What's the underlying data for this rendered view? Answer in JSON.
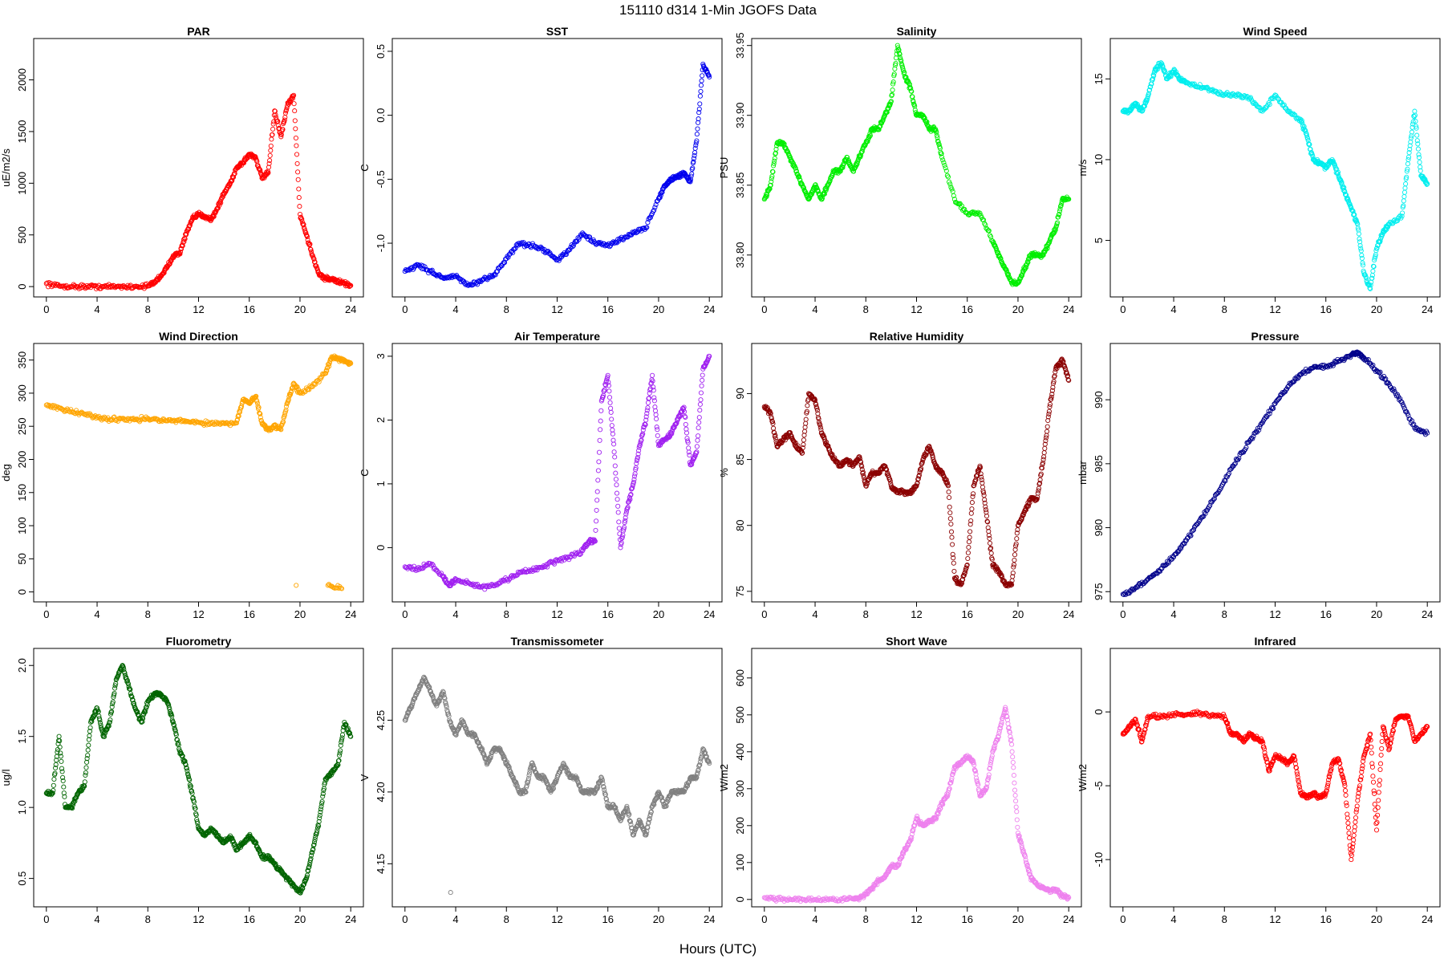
{
  "figure": {
    "title": "151110   d314   1-Min  JGOFS Data",
    "xlabel": "Hours (UTC)"
  },
  "chart_data": [
    {
      "type": "scatter",
      "title": "PAR",
      "ylabel": "uE/m2/s",
      "color": "#ff0000",
      "xlim": [
        -1,
        25
      ],
      "ylim": [
        -100,
        2400
      ],
      "xticks": [
        0,
        4,
        8,
        12,
        16,
        20,
        24
      ],
      "yticks": [
        0,
        500,
        1000,
        1500,
        2000
      ],
      "x": [
        0,
        1,
        2,
        3,
        4,
        5,
        6,
        7,
        8,
        8.5,
        9,
        9.5,
        10,
        10.5,
        11,
        11.5,
        12,
        12.5,
        13,
        13.5,
        14,
        14.5,
        15,
        15.5,
        16,
        16.5,
        17,
        17.5,
        18,
        18.5,
        19,
        19.5,
        20,
        20.5,
        21,
        21.5,
        22,
        22.5,
        23,
        23.5,
        24
      ],
      "y": [
        30,
        5,
        0,
        0,
        0,
        0,
        0,
        0,
        5,
        40,
        100,
        180,
        300,
        320,
        500,
        650,
        700,
        680,
        650,
        760,
        900,
        1000,
        1150,
        1200,
        1280,
        1250,
        1050,
        1100,
        1700,
        1450,
        1750,
        1850,
        700,
        500,
        300,
        120,
        80,
        70,
        50,
        30,
        10
      ]
    },
    {
      "type": "scatter",
      "title": "SST",
      "ylabel": "C",
      "color": "#0000ee",
      "xlim": [
        -1,
        25
      ],
      "ylim": [
        -1.42,
        0.6
      ],
      "xticks": [
        0,
        4,
        8,
        12,
        16,
        20,
        24
      ],
      "yticks": [
        -1.0,
        -0.5,
        0.0,
        0.5
      ],
      "yticklabels": [
        "-1.0",
        "-0.5",
        "0.0",
        "0.5"
      ],
      "x": [
        0,
        1,
        2,
        3,
        4,
        5,
        6,
        7,
        8,
        9,
        10,
        11,
        12,
        13,
        14,
        15,
        16,
        17,
        18,
        19,
        20,
        20.5,
        21,
        21.5,
        22,
        22.5,
        23,
        23.5,
        24
      ],
      "y": [
        -1.22,
        -1.17,
        -1.22,
        -1.27,
        -1.26,
        -1.33,
        -1.3,
        -1.25,
        -1.12,
        -1.0,
        -1.02,
        -1.05,
        -1.13,
        -1.05,
        -0.92,
        -1.0,
        -1.02,
        -0.97,
        -0.92,
        -0.88,
        -0.65,
        -0.55,
        -0.5,
        -0.48,
        -0.45,
        -0.52,
        -0.2,
        0.4,
        0.3
      ]
    },
    {
      "type": "scatter",
      "title": "Salinity",
      "ylabel": "PSU",
      "color": "#00ee00",
      "xlim": [
        -1,
        25
      ],
      "ylim": [
        33.77,
        33.955
      ],
      "xticks": [
        0,
        4,
        8,
        12,
        16,
        20,
        24
      ],
      "yticks": [
        33.8,
        33.85,
        33.9,
        33.95
      ],
      "yticklabels": [
        "33.80",
        "33.85",
        "33.90",
        "33.95"
      ],
      "x": [
        0,
        0.5,
        1,
        1.5,
        2,
        2.5,
        3,
        3.5,
        4,
        4.5,
        5,
        5.5,
        6,
        6.5,
        7,
        7.5,
        8,
        8.5,
        9,
        9.5,
        10,
        10.5,
        11,
        11.5,
        12,
        12.5,
        13,
        13.5,
        14,
        15,
        16,
        17,
        18,
        18.5,
        19,
        19.5,
        20,
        20.5,
        21,
        21.5,
        22,
        22.5,
        23,
        23.5,
        24
      ],
      "y": [
        33.84,
        33.85,
        33.88,
        33.88,
        33.87,
        33.86,
        33.85,
        33.84,
        33.85,
        33.84,
        33.85,
        33.86,
        33.86,
        33.87,
        33.86,
        33.87,
        33.88,
        33.89,
        33.89,
        33.9,
        33.91,
        33.95,
        33.93,
        33.92,
        33.9,
        33.9,
        33.89,
        33.89,
        33.87,
        33.84,
        33.83,
        33.83,
        33.81,
        33.8,
        33.79,
        33.78,
        33.78,
        33.79,
        33.8,
        33.8,
        33.8,
        33.81,
        33.82,
        33.84,
        33.84
      ]
    },
    {
      "type": "scatter",
      "title": "Wind Speed",
      "ylabel": "m/s",
      "color": "#00eeee",
      "xlim": [
        -1,
        25
      ],
      "ylim": [
        1.5,
        17.5
      ],
      "xticks": [
        0,
        4,
        8,
        12,
        16,
        20,
        24
      ],
      "yticks": [
        5,
        10,
        15
      ],
      "x": [
        0,
        0.5,
        1,
        1.5,
        2,
        2.5,
        3,
        3.5,
        4,
        4.5,
        5,
        6,
        7,
        8,
        9,
        10,
        11,
        12,
        13,
        14,
        14.5,
        15,
        15.5,
        16,
        16.5,
        17,
        17.5,
        18,
        18.5,
        19,
        19.5,
        20,
        20.5,
        21,
        22,
        22.5,
        23,
        23.5,
        24
      ],
      "y": [
        13,
        13,
        13.5,
        13,
        14,
        15.5,
        16,
        15,
        15.5,
        15,
        14.8,
        14.5,
        14.3,
        14,
        14,
        13.8,
        13,
        14,
        13,
        12.5,
        11.5,
        10,
        9.8,
        9.5,
        10,
        9,
        8,
        7,
        6,
        3,
        2,
        4.5,
        5.5,
        6,
        6.5,
        10,
        13,
        9,
        8.5
      ]
    },
    {
      "type": "scatter",
      "title": "Wind Direction",
      "ylabel": "deg",
      "color": "#ffa500",
      "xlim": [
        -1,
        25
      ],
      "ylim": [
        -15,
        375
      ],
      "xticks": [
        0,
        4,
        8,
        12,
        16,
        20,
        24
      ],
      "yticks": [
        0,
        50,
        100,
        150,
        200,
        250,
        300,
        350
      ],
      "x": [
        0,
        1,
        2,
        3,
        4,
        5,
        6,
        7,
        8,
        9,
        10,
        11,
        12,
        13,
        14,
        15,
        15.5,
        16,
        16.5,
        17,
        17.5,
        18,
        18.5,
        19,
        19.5,
        20,
        21,
        22,
        22.5,
        23,
        23.5,
        24,
        19.7,
        22.2,
        23.3
      ],
      "y": [
        282,
        278,
        272,
        268,
        264,
        260,
        262,
        260,
        262,
        259,
        258,
        258,
        256,
        254,
        255,
        255,
        290,
        285,
        295,
        255,
        245,
        250,
        245,
        285,
        315,
        300,
        310,
        330,
        355,
        352,
        350,
        345,
        10,
        10,
        5
      ]
    },
    {
      "type": "scatter",
      "title": "Air Temperature",
      "ylabel": "C",
      "color": "#a020f0",
      "xlim": [
        -1,
        25
      ],
      "ylim": [
        -0.85,
        3.2
      ],
      "xticks": [
        0,
        4,
        8,
        12,
        16,
        20,
        24
      ],
      "yticks": [
        0,
        1,
        2,
        3
      ],
      "x": [
        0,
        1,
        2,
        3,
        3.5,
        4,
        5,
        6,
        7,
        8,
        9,
        10,
        11,
        12,
        13,
        14,
        14.5,
        15,
        15.5,
        16,
        16.5,
        17,
        17.5,
        18,
        18.5,
        19,
        19.5,
        20,
        20.5,
        21,
        21.5,
        22,
        22.5,
        23,
        23.5,
        24
      ],
      "y": [
        -0.3,
        -0.35,
        -0.25,
        -0.45,
        -0.6,
        -0.5,
        -0.55,
        -0.62,
        -0.6,
        -0.5,
        -0.4,
        -0.35,
        -0.3,
        -0.2,
        -0.15,
        -0.05,
        0.1,
        0.1,
        2.3,
        2.7,
        1.5,
        0.0,
        0.6,
        1.0,
        1.6,
        2.0,
        2.7,
        1.6,
        1.7,
        1.8,
        2.0,
        2.2,
        1.3,
        1.5,
        2.8,
        3.0
      ]
    },
    {
      "type": "scatter",
      "title": "Relative Humidity",
      "ylabel": "%",
      "color": "#8b0000",
      "xlim": [
        -1,
        25
      ],
      "ylim": [
        74.2,
        93.8
      ],
      "xticks": [
        0,
        4,
        8,
        12,
        16,
        20,
        24
      ],
      "yticks": [
        75,
        80,
        85,
        90
      ],
      "x": [
        0,
        0.5,
        1,
        1.5,
        2,
        2.5,
        3,
        3.5,
        4,
        4.5,
        5,
        5.5,
        6,
        6.5,
        7,
        7.5,
        8,
        8.5,
        9,
        9.5,
        10,
        10.5,
        11,
        11.5,
        12,
        12.5,
        13,
        13.5,
        14,
        14.5,
        15,
        15.5,
        16,
        16.5,
        17,
        17.5,
        18,
        18.5,
        19,
        19.5,
        20,
        20.5,
        21,
        21.5,
        22,
        22.5,
        23,
        23.5,
        24
      ],
      "y": [
        89,
        88.5,
        86,
        86.5,
        87,
        86,
        85.5,
        90,
        89.5,
        87,
        86,
        85,
        84.5,
        85,
        84.5,
        85.2,
        83,
        84,
        84,
        84.5,
        83,
        82.5,
        82.5,
        82.5,
        83,
        85,
        86,
        84.5,
        84,
        83,
        76,
        75.5,
        77,
        83,
        84.5,
        81,
        77,
        76.5,
        75.5,
        75.5,
        80,
        81,
        82,
        82,
        85,
        89,
        92,
        92.5,
        91
      ]
    },
    {
      "type": "scatter",
      "title": "Pressure",
      "ylabel": "mbar",
      "color": "#00008b",
      "xlim": [
        -1,
        25
      ],
      "ylim": [
        974.2,
        994.4
      ],
      "xticks": [
        0,
        4,
        8,
        12,
        16,
        20,
        24
      ],
      "yticks": [
        975,
        980,
        985,
        990
      ],
      "x": [
        0,
        1,
        2,
        3,
        4,
        5,
        6,
        7,
        8,
        9,
        10,
        11,
        12,
        13,
        14,
        15,
        16,
        17,
        18,
        18.5,
        19,
        20,
        21,
        22,
        23,
        24
      ],
      "y": [
        974.8,
        975.3,
        976,
        976.8,
        977.7,
        979,
        980.5,
        982,
        983.7,
        985.3,
        986.8,
        988.2,
        989.7,
        991,
        992,
        992.5,
        992.6,
        993,
        993.5,
        993.7,
        993.3,
        992.3,
        991.2,
        989.8,
        987.8,
        987.4
      ]
    },
    {
      "type": "scatter",
      "title": "Fluorometry",
      "ylabel": "ug/l",
      "color": "#006400",
      "xlim": [
        -1,
        25
      ],
      "ylim": [
        0.3,
        2.12
      ],
      "xticks": [
        0,
        4,
        8,
        12,
        16,
        20,
        24
      ],
      "yticks": [
        0.5,
        1.0,
        1.5,
        2.0
      ],
      "yticklabels": [
        "0.5",
        "1.0",
        "1.5",
        "2.0"
      ],
      "x": [
        0,
        0.5,
        1,
        1.5,
        2,
        2.5,
        3,
        3.5,
        4,
        4.5,
        5,
        5.5,
        6,
        6.5,
        7,
        7.5,
        8,
        8.5,
        9,
        9.5,
        10,
        10.5,
        11,
        11.5,
        12,
        12.5,
        13,
        13.5,
        14,
        14.5,
        15,
        15.5,
        16,
        16.5,
        17,
        17.5,
        18,
        18.5,
        19,
        19.5,
        20,
        20.5,
        21,
        21.5,
        22,
        22.5,
        23,
        23.5,
        24
      ],
      "y": [
        1.1,
        1.1,
        1.5,
        1.0,
        1.0,
        1.1,
        1.15,
        1.6,
        1.7,
        1.5,
        1.6,
        1.9,
        2.0,
        1.85,
        1.7,
        1.6,
        1.75,
        1.8,
        1.8,
        1.75,
        1.6,
        1.4,
        1.3,
        1.1,
        0.85,
        0.8,
        0.85,
        0.8,
        0.75,
        0.8,
        0.7,
        0.75,
        0.8,
        0.75,
        0.65,
        0.65,
        0.6,
        0.55,
        0.5,
        0.45,
        0.4,
        0.5,
        0.7,
        0.9,
        1.2,
        1.25,
        1.3,
        1.6,
        1.5
      ]
    },
    {
      "type": "scatter",
      "title": "Transmissometer",
      "ylabel": "V",
      "color": "#808080",
      "xlim": [
        -1,
        25
      ],
      "ylim": [
        4.12,
        4.3
      ],
      "xticks": [
        0,
        4,
        8,
        12,
        16,
        20,
        24
      ],
      "yticks": [
        4.15,
        4.2,
        4.25
      ],
      "yticklabels": [
        "4.15",
        "4.20",
        "4.25"
      ],
      "x": [
        0,
        0.5,
        1,
        1.5,
        2,
        2.5,
        3,
        3.5,
        4,
        4.5,
        5,
        5.5,
        6,
        6.5,
        7,
        7.5,
        8,
        8.5,
        9,
        9.5,
        10,
        10.5,
        11,
        11.5,
        12,
        12.5,
        13,
        13.5,
        14,
        14.5,
        15,
        15.5,
        16,
        16.5,
        17,
        17.5,
        18,
        18.5,
        19,
        19.5,
        20,
        20.5,
        21,
        21.5,
        22,
        22.5,
        23,
        23.5,
        24,
        3.6
      ],
      "y": [
        4.25,
        4.26,
        4.27,
        4.28,
        4.27,
        4.26,
        4.27,
        4.25,
        4.24,
        4.25,
        4.24,
        4.24,
        4.23,
        4.22,
        4.23,
        4.23,
        4.22,
        4.21,
        4.2,
        4.2,
        4.22,
        4.21,
        4.21,
        4.2,
        4.21,
        4.22,
        4.21,
        4.21,
        4.2,
        4.2,
        4.2,
        4.21,
        4.19,
        4.19,
        4.18,
        4.19,
        4.17,
        4.18,
        4.17,
        4.19,
        4.2,
        4.19,
        4.2,
        4.2,
        4.2,
        4.21,
        4.21,
        4.23,
        4.22,
        4.13
      ]
    },
    {
      "type": "scatter",
      "title": "Short Wave",
      "ylabel": "W/m2",
      "color": "#ee82ee",
      "xlim": [
        -1,
        25
      ],
      "ylim": [
        -20,
        680
      ],
      "xticks": [
        0,
        4,
        8,
        12,
        16,
        20,
        24
      ],
      "yticks": [
        0,
        100,
        200,
        300,
        400,
        500,
        600
      ],
      "x": [
        0,
        1,
        2,
        3,
        4,
        5,
        6,
        7,
        7.5,
        8,
        8.5,
        9,
        9.5,
        10,
        10.5,
        11,
        11.5,
        12,
        12.5,
        13,
        13.5,
        14,
        14.5,
        15,
        15.5,
        16,
        16.5,
        17,
        17.5,
        18,
        18.5,
        19,
        19.5,
        20,
        20.5,
        21,
        21.5,
        22,
        22.5,
        23,
        23.5,
        24
      ],
      "y": [
        5,
        2,
        0,
        0,
        0,
        0,
        0,
        2,
        5,
        15,
        30,
        50,
        60,
        90,
        90,
        130,
        160,
        220,
        200,
        210,
        220,
        260,
        290,
        360,
        370,
        390,
        370,
        280,
        300,
        400,
        450,
        520,
        420,
        180,
        120,
        60,
        40,
        30,
        25,
        25,
        10,
        5
      ]
    },
    {
      "type": "scatter",
      "title": "Infrared",
      "ylabel": "W/m2",
      "color": "#ff0000",
      "xlim": [
        -1,
        25
      ],
      "ylim": [
        -13.2,
        4.3
      ],
      "xticks": [
        0,
        4,
        8,
        12,
        16,
        20,
        24
      ],
      "yticks": [
        -10,
        -5,
        0
      ],
      "x": [
        0,
        0.5,
        1,
        1.5,
        2,
        3,
        4,
        5,
        6,
        7,
        8,
        8.5,
        9,
        9.5,
        10,
        10.5,
        11,
        11.5,
        12,
        12.5,
        13,
        13.5,
        14,
        14.5,
        15,
        15.5,
        16,
        16.5,
        17,
        17.5,
        18,
        18.5,
        19,
        19.5,
        20,
        20.5,
        21,
        21.5,
        22,
        22.5,
        23,
        23.5,
        24
      ],
      "y": [
        -1.5,
        -1.0,
        -0.5,
        -2.0,
        -0.3,
        -0.3,
        -0.2,
        -0.2,
        -0.1,
        -0.2,
        -0.3,
        -1.5,
        -1.5,
        -2.0,
        -1.5,
        -1.8,
        -2.0,
        -4.0,
        -3.0,
        -3.2,
        -3.5,
        -3.0,
        -5.5,
        -5.8,
        -5.5,
        -5.8,
        -5.5,
        -3.5,
        -3.2,
        -5.0,
        -10.0,
        -6.0,
        -3.0,
        -1.5,
        -8.0,
        -1.0,
        -2.5,
        -0.5,
        -0.3,
        -0.3,
        -2.0,
        -1.5,
        -1.0
      ]
    }
  ]
}
